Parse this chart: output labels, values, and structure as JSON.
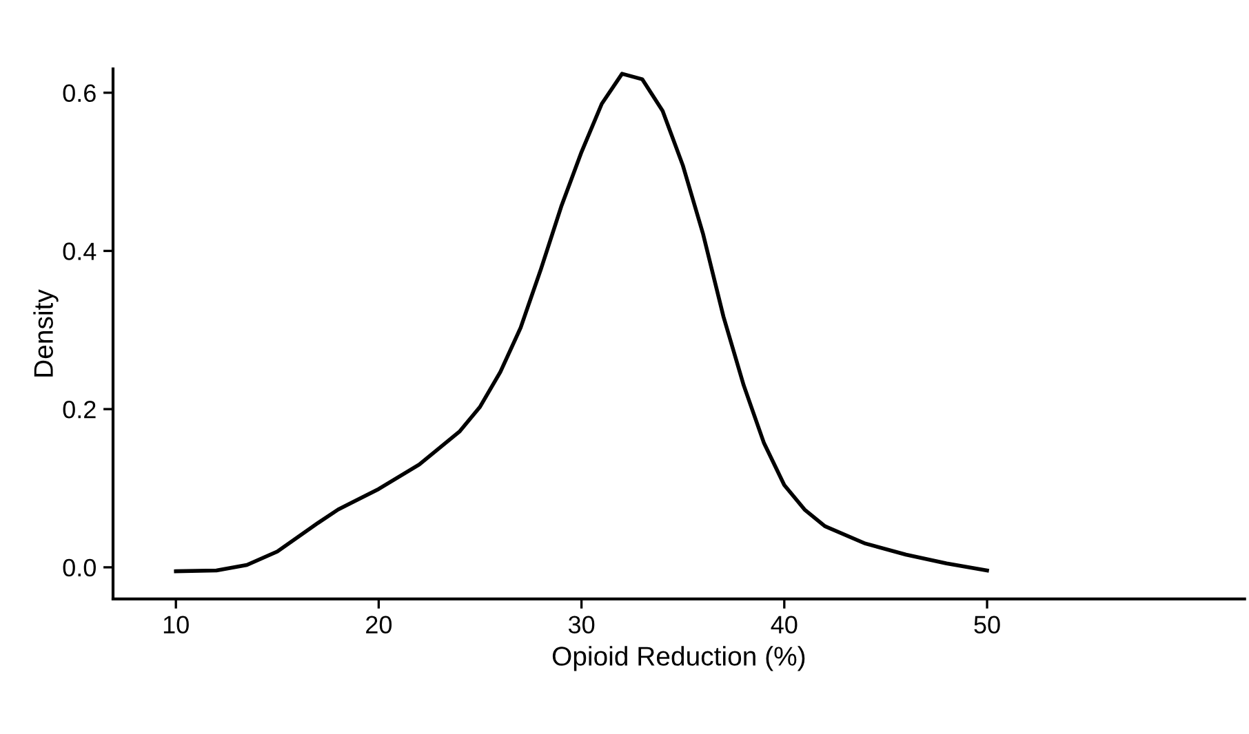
{
  "chart_data": {
    "type": "line",
    "xlabel": "Opioid Reduction (%)",
    "ylabel": "Density",
    "x": [
      10,
      12,
      13.5,
      15,
      17,
      18,
      20,
      22,
      24,
      25,
      26,
      27,
      28,
      29,
      30,
      31,
      32,
      33,
      34,
      35,
      36,
      37,
      38,
      39,
      40,
      41,
      42,
      44,
      46,
      48,
      50
    ],
    "series": [
      {
        "color": "#000000",
        "values": [
          -0.005,
          -0.004,
          0.003,
          0.02,
          0.056,
          0.073,
          0.099,
          0.13,
          0.172,
          0.203,
          0.247,
          0.303,
          0.377,
          0.456,
          0.525,
          0.586,
          0.624,
          0.617,
          0.577,
          0.508,
          0.421,
          0.317,
          0.23,
          0.157,
          0.104,
          0.073,
          0.052,
          0.03,
          0.016,
          0.005,
          -0.004
        ]
      }
    ],
    "xlim": [
      6.9,
      62.7
    ],
    "ylim": [
      -0.04,
      0.63
    ],
    "xticks": [
      10,
      20,
      30,
      40,
      50
    ],
    "yticks": [
      {
        "value": 0,
        "label": "0.0"
      },
      {
        "value": 0.2,
        "label": "0.2"
      },
      {
        "value": 0.4,
        "label": "0.4"
      },
      {
        "value": 0.6,
        "label": "0.6"
      }
    ],
    "grid": false,
    "marker": "none",
    "line_style": "solid"
  }
}
